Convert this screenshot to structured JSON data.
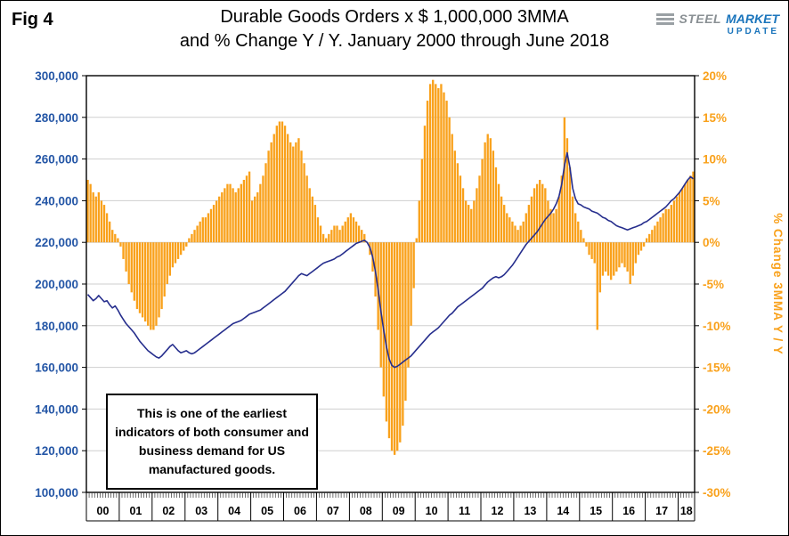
{
  "fig_label": "Fig 4",
  "header": {
    "title_line1": "Durable Goods Orders x $ 1,000,000 3MMA",
    "title_line2": "and % Change Y / Y. January 2000 through June 2018"
  },
  "logo": {
    "steel": "STEEL",
    "market": "MARKET",
    "update": "UPDATE"
  },
  "annotation": "This is one of the earliest indicators of both consumer and business demand for US manufactured goods.",
  "colors": {
    "bar": "#f9a11b",
    "line": "#262e8d",
    "left_axis_labels": "#2456a6",
    "right_axis_labels": "#f9a11b",
    "grid": "#cfcfcf"
  },
  "chart_data": {
    "type": "combo bar+line",
    "title": "Durable Goods Orders x $ 1,000,000 3MMA and % Change Y / Y. January 2000 through June 2018",
    "x": {
      "frequency": "monthly",
      "start": "2000-01",
      "end": "2018-06",
      "year_labels": [
        "00",
        "01",
        "02",
        "03",
        "04",
        "05",
        "06",
        "07",
        "08",
        "09",
        "10",
        "11",
        "12",
        "13",
        "14",
        "15",
        "16",
        "17",
        "18"
      ]
    },
    "left_axis": {
      "min": 100000,
      "max": 300000,
      "step": 20000,
      "tick_labels": [
        "300,000",
        "280,000",
        "260,000",
        "240,000",
        "220,000",
        "200,000",
        "180,000",
        "160,000",
        "140,000",
        "120,000",
        "100,000"
      ]
    },
    "right_axis": {
      "title": "% Change 3MMA Y / Y",
      "min": -30,
      "max": 20,
      "step": 5,
      "tick_labels": [
        "20%",
        "15%",
        "10%",
        "5%",
        "0%",
        "-5%",
        "-10%",
        "-15%",
        "-20%",
        "-25%",
        "-30%"
      ]
    },
    "series": [
      {
        "name": "Durable Goods Orders 3MMA (x $1,000,000)",
        "type": "line",
        "axis": "left",
        "values": [
          195000,
          193500,
          192000,
          193000,
          194500,
          193000,
          191500,
          192000,
          190000,
          188500,
          189500,
          187500,
          185000,
          183000,
          181000,
          179500,
          178000,
          176500,
          174500,
          172500,
          171000,
          169500,
          168000,
          167000,
          166000,
          165000,
          164500,
          165500,
          167000,
          168500,
          170000,
          171000,
          169500,
          168000,
          167000,
          167500,
          168000,
          167000,
          166500,
          167000,
          168000,
          169000,
          170000,
          171000,
          172000,
          173000,
          174000,
          175000,
          176000,
          177000,
          178000,
          179000,
          180000,
          181000,
          181500,
          182000,
          182500,
          183500,
          184500,
          185500,
          186000,
          186500,
          187000,
          187500,
          188500,
          189500,
          190500,
          191500,
          192500,
          193500,
          194500,
          195500,
          196500,
          198000,
          199500,
          201000,
          202500,
          204000,
          205000,
          204500,
          204000,
          205000,
          206000,
          207000,
          208000,
          209000,
          210000,
          210500,
          211000,
          211500,
          212000,
          213000,
          213500,
          214500,
          215500,
          216500,
          217500,
          218500,
          219500,
          220000,
          220500,
          221000,
          220000,
          217500,
          213000,
          206000,
          197000,
          187000,
          178000,
          170000,
          164000,
          161000,
          160000,
          160500,
          161500,
          162500,
          163500,
          164500,
          165500,
          167000,
          168500,
          170000,
          171500,
          173000,
          174500,
          176000,
          177000,
          178000,
          179000,
          180500,
          182000,
          183500,
          185000,
          186000,
          187500,
          189000,
          190000,
          191000,
          192000,
          193000,
          194000,
          195000,
          196000,
          197000,
          198000,
          199500,
          201000,
          202000,
          203000,
          203500,
          203000,
          203500,
          204500,
          206000,
          207500,
          209000,
          211000,
          213000,
          215000,
          217000,
          219000,
          220500,
          222000,
          223500,
          225000,
          227000,
          229000,
          231000,
          232500,
          234000,
          236000,
          238500,
          242000,
          248000,
          257000,
          263000,
          256000,
          246000,
          241000,
          238500,
          238000,
          237000,
          236500,
          236000,
          235000,
          234500,
          234000,
          233000,
          232000,
          231500,
          230500,
          230000,
          229000,
          228000,
          227500,
          227000,
          226500,
          226000,
          226500,
          227000,
          227500,
          228000,
          228500,
          229500,
          230000,
          231000,
          232000,
          233000,
          234000,
          235000,
          236000,
          237000,
          238500,
          240000,
          241000,
          242500,
          244000,
          246000,
          248000,
          250000,
          251500,
          250500
        ]
      },
      {
        "name": "% Change 3MMA Y / Y",
        "type": "bar",
        "axis": "right",
        "values": [
          7.5,
          7,
          6,
          5.5,
          6,
          5,
          4.5,
          3.5,
          2.5,
          1.5,
          1,
          0.5,
          -0.5,
          -2,
          -3.5,
          -5,
          -6,
          -7,
          -8,
          -8.5,
          -9,
          -9.5,
          -10,
          -10.5,
          -10.5,
          -10,
          -9,
          -8,
          -6.5,
          -5,
          -4,
          -3,
          -2.5,
          -2,
          -1.5,
          -1,
          -0.5,
          0.5,
          1,
          1.5,
          2,
          2.5,
          3,
          3,
          3.5,
          4,
          4.5,
          5,
          5.5,
          6,
          6.5,
          7,
          7,
          6.5,
          6,
          6.5,
          7,
          7.5,
          8,
          8.5,
          5,
          5.5,
          6,
          7,
          8,
          9.5,
          11,
          12,
          13,
          14,
          14.5,
          14.5,
          14,
          13,
          12,
          11.5,
          12,
          12.5,
          11,
          9.5,
          8,
          6.5,
          5.5,
          4.5,
          3,
          2,
          1,
          0.5,
          1,
          1.5,
          2,
          2,
          1.5,
          2,
          2.5,
          3,
          3.5,
          3,
          2.5,
          2,
          1.5,
          1,
          0,
          -1.5,
          -3.5,
          -6.5,
          -10.5,
          -15,
          -18.5,
          -21.5,
          -23.5,
          -25,
          -25.5,
          -25,
          -24,
          -22,
          -19,
          -15,
          -10,
          -5.5,
          0.5,
          5,
          10,
          14,
          17,
          19,
          19.5,
          19,
          18.5,
          19,
          18,
          17,
          15,
          13,
          11,
          9.5,
          8,
          6.5,
          5,
          4.5,
          4,
          5,
          6.5,
          8,
          10,
          12,
          13,
          12.5,
          11,
          9,
          7,
          5.5,
          4.5,
          3.5,
          3,
          2.5,
          2,
          1.5,
          2,
          2.5,
          3.5,
          4.5,
          5.5,
          6.5,
          7,
          7.5,
          7,
          6.5,
          5,
          4,
          3.5,
          4,
          5.5,
          8,
          15,
          12.5,
          9,
          5.5,
          3.5,
          2.5,
          1.5,
          0.5,
          -0.5,
          -1.5,
          -2,
          -2.5,
          -10.5,
          -6,
          -4,
          -3.5,
          -4,
          -4.5,
          -4,
          -3.5,
          -3,
          -2.5,
          -3,
          -3.5,
          -5,
          -4,
          -2.5,
          -1.5,
          -1,
          -0.5,
          0.5,
          1,
          1.5,
          2,
          2.5,
          3,
          3.5,
          4,
          4,
          4.5,
          5,
          5.5,
          6,
          6.5,
          7,
          7.5,
          8,
          8.5
        ]
      }
    ]
  }
}
